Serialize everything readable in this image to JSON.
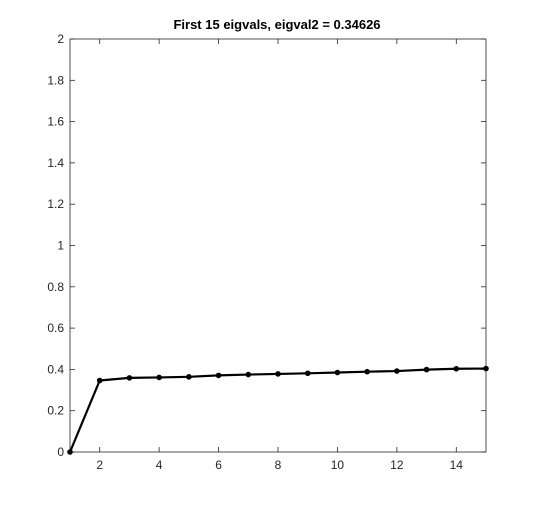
{
  "chart_data": {
    "type": "line",
    "title": "First 15 eigvals, eigval2 = 0.34626",
    "xlabel": "",
    "ylabel": "",
    "x": [
      1,
      2,
      3,
      4,
      5,
      6,
      7,
      8,
      9,
      10,
      11,
      12,
      13,
      14,
      15
    ],
    "series": [
      {
        "values": [
          0,
          0.34626,
          0.359,
          0.361,
          0.364,
          0.371,
          0.375,
          0.378,
          0.381,
          0.385,
          0.389,
          0.392,
          0.399,
          0.403,
          0.404
        ]
      }
    ],
    "xlim": [
      1,
      15
    ],
    "ylim": [
      0,
      2
    ],
    "xticks": [
      2,
      4,
      6,
      8,
      10,
      12,
      14
    ],
    "yticks": [
      0,
      0.2,
      0.4,
      0.6,
      0.8,
      1,
      1.2,
      1.4,
      1.6,
      1.8,
      2
    ],
    "grid": false,
    "line_color": "#000000",
    "marker": "dot"
  }
}
